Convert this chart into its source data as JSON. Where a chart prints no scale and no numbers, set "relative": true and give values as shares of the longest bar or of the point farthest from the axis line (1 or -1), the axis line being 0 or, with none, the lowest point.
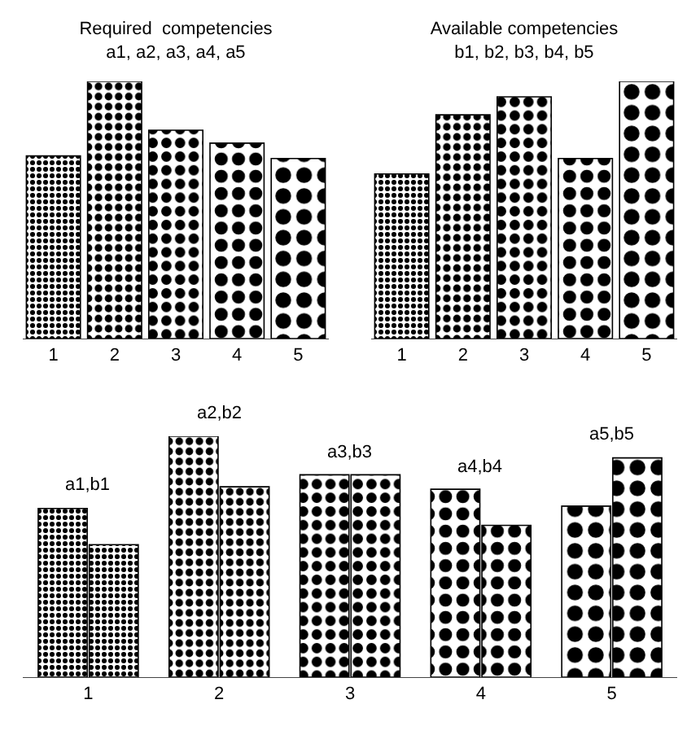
{
  "chart_data": [
    {
      "type": "bar",
      "title": "Required  competencies\na1, a2, a3, a4, a5",
      "categories": [
        "1",
        "2",
        "3",
        "4",
        "5"
      ],
      "values": [
        0.71,
        1,
        0.81,
        0.76,
        0.7
      ],
      "color": "#000000",
      "relative": true
    },
    {
      "type": "bar",
      "title": "Available competencies\nb1, b2, b3, b4, b5",
      "categories": [
        "1",
        "2",
        "3",
        "4",
        "5"
      ],
      "values": [
        0.64,
        0.87,
        0.94,
        0.7,
        1
      ],
      "color": "#000000",
      "relative": true
    },
    {
      "type": "bar",
      "categories": [
        "1",
        "2",
        "3",
        "4",
        "5"
      ],
      "series": [
        {
          "color": "#000000",
          "values": [
            0.7,
            1,
            0.84,
            0.78,
            0.71
          ]
        },
        {
          "color": "#000000",
          "values": [
            0.55,
            0.79,
            0.84,
            0.63,
            0.91
          ]
        }
      ],
      "annotations": [
        "a1,b1",
        "a2,b2",
        "a3,b3",
        "a4,b4",
        "a5,b5"
      ],
      "relative": true
    }
  ]
}
